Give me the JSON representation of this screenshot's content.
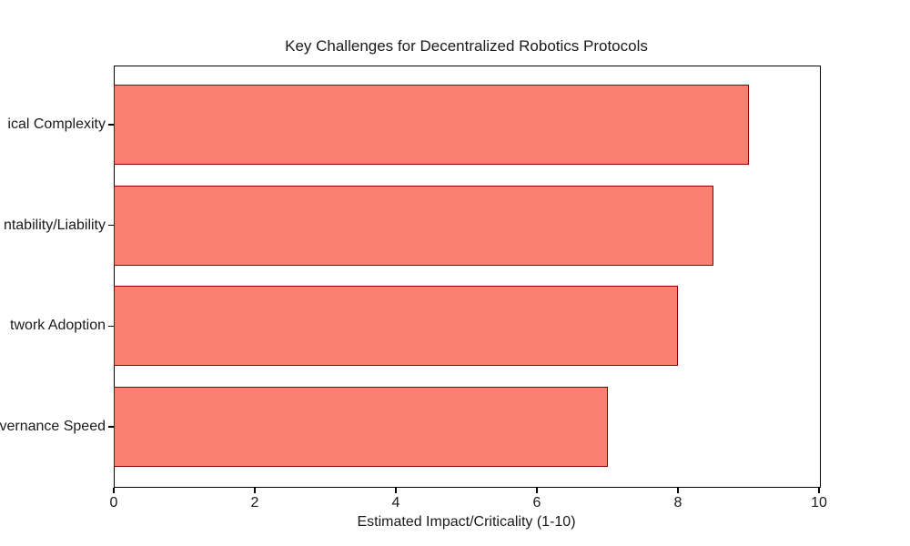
{
  "chart_data": {
    "type": "bar",
    "orientation": "horizontal",
    "title": "Key Challenges for Decentralized Robotics Protocols",
    "xlabel": "Estimated Impact/Criticality (1-10)",
    "ylabel": "",
    "categories": [
      "ical Complexity",
      "ntability/Liability",
      "twork Adoption",
      "vernance Speed"
    ],
    "values": [
      9,
      8.5,
      8,
      7
    ],
    "xlim": [
      0,
      10
    ],
    "xticks": [
      0,
      2,
      4,
      6,
      8,
      10
    ],
    "grid": false,
    "legend": null,
    "bar_fill_color": "#FA8072",
    "bar_edge_color": "#8B0000",
    "axis_color": "#000000",
    "text_color": "#1a1a1a",
    "background_color": "#ffffff"
  }
}
